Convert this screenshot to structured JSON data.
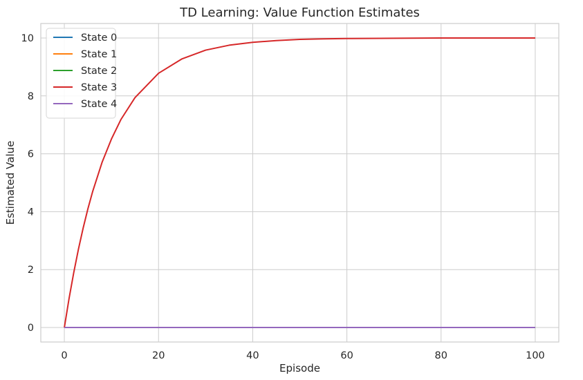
{
  "chart_data": {
    "type": "line",
    "title": "TD Learning: Value Function Estimates",
    "xlabel": "Episode",
    "ylabel": "Estimated Value",
    "xlim": [
      -5,
      105
    ],
    "ylim": [
      -0.5,
      10.5
    ],
    "x_ticks": [
      0,
      20,
      40,
      60,
      80,
      100
    ],
    "y_ticks": [
      0,
      2,
      4,
      6,
      8,
      10
    ],
    "grid": true,
    "legend_position": "top-left",
    "series": [
      {
        "name": "State 0",
        "color": "#1f77b4",
        "x": [
          0,
          100
        ],
        "y": [
          0,
          0
        ]
      },
      {
        "name": "State 1",
        "color": "#ff7f0e",
        "x": [
          0,
          100
        ],
        "y": [
          0,
          0
        ]
      },
      {
        "name": "State 2",
        "color": "#2ca02c",
        "x": [
          0,
          100
        ],
        "y": [
          0,
          0
        ]
      },
      {
        "name": "State 3",
        "color": "#d62728",
        "x": [
          0,
          1,
          2,
          3,
          4,
          5,
          6,
          8,
          10,
          12,
          15,
          20,
          25,
          30,
          35,
          40,
          45,
          50,
          55,
          60,
          70,
          80,
          90,
          100
        ],
        "y": [
          0,
          1.0,
          1.9,
          2.71,
          3.44,
          4.1,
          4.69,
          5.7,
          6.51,
          7.18,
          7.94,
          8.78,
          9.28,
          9.58,
          9.75,
          9.85,
          9.91,
          9.95,
          9.97,
          9.98,
          9.99,
          10.0,
          10.0,
          10.0
        ]
      },
      {
        "name": "State 4",
        "color": "#9467bd",
        "x": [
          0,
          100
        ],
        "y": [
          0,
          0
        ]
      }
    ]
  }
}
